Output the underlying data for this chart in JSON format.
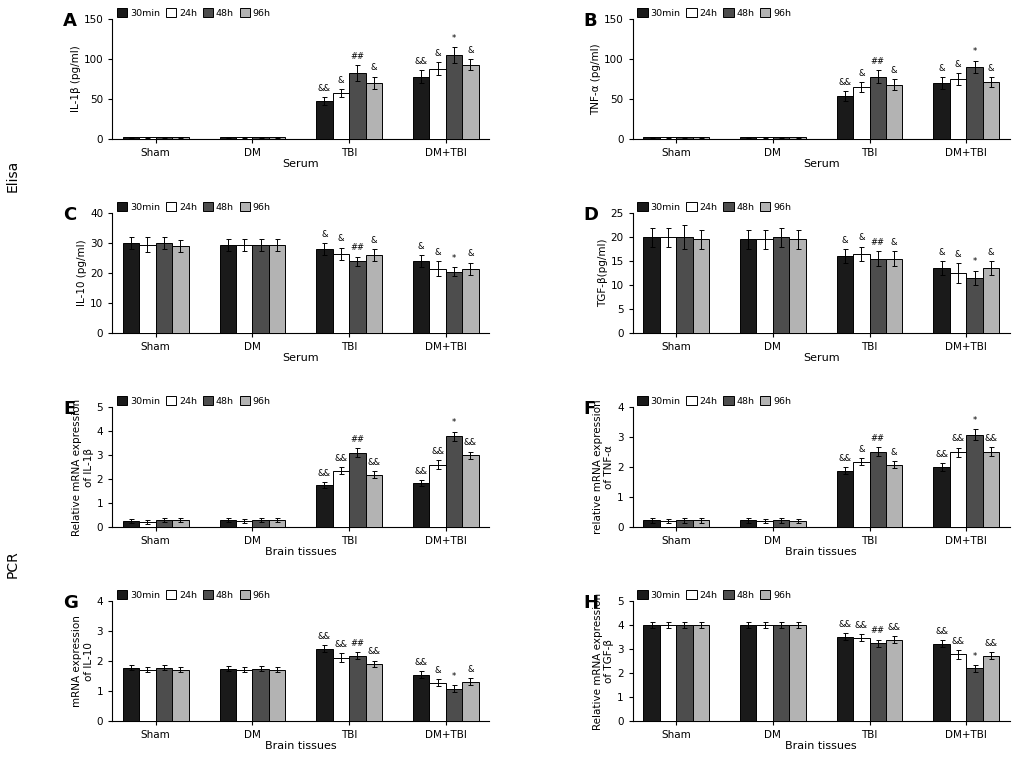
{
  "panels": {
    "A": {
      "title": "A",
      "ylabel": "IL-1β (pg/ml)",
      "xlabel": "Serum",
      "ylim": [
        0,
        150
      ],
      "yticks": [
        0,
        50,
        100,
        150
      ],
      "values": {
        "30min": [
          2,
          2,
          47,
          78
        ],
        "24h": [
          2,
          2,
          57,
          88
        ],
        "48h": [
          2,
          2,
          82,
          105
        ],
        "96h": [
          2,
          2,
          70,
          93
        ]
      },
      "errors": {
        "30min": [
          0.5,
          0.5,
          5,
          8
        ],
        "24h": [
          0.5,
          0.5,
          5,
          8
        ],
        "48h": [
          0.5,
          0.5,
          10,
          10
        ],
        "96h": [
          0.5,
          0.5,
          8,
          7
        ]
      },
      "ann_TBI": [
        "&&",
        "&",
        "##",
        "&"
      ],
      "ann_DMTBI": [
        "&&",
        "&",
        "*",
        "&"
      ]
    },
    "B": {
      "title": "B",
      "ylabel": "TNF-α (pg/ml)",
      "xlabel": "Serum",
      "ylim": [
        0,
        150
      ],
      "yticks": [
        0,
        50,
        100,
        150
      ],
      "values": {
        "30min": [
          2,
          2,
          54,
          70
        ],
        "24h": [
          2,
          2,
          65,
          75
        ],
        "48h": [
          2,
          2,
          78,
          90
        ],
        "96h": [
          2,
          2,
          68,
          71
        ]
      },
      "errors": {
        "30min": [
          0.5,
          0.5,
          6,
          7
        ],
        "24h": [
          0.5,
          0.5,
          6,
          7
        ],
        "48h": [
          0.5,
          0.5,
          8,
          8
        ],
        "96h": [
          0.5,
          0.5,
          7,
          6
        ]
      },
      "ann_TBI": [
        "&&",
        "&",
        "##",
        "&"
      ],
      "ann_DMTBI": [
        "&",
        "&",
        "*",
        "&"
      ]
    },
    "C": {
      "title": "C",
      "ylabel": "IL-10 (pg/ml)",
      "xlabel": "Serum",
      "ylim": [
        0,
        40
      ],
      "yticks": [
        0,
        10,
        20,
        30,
        40
      ],
      "values": {
        "30min": [
          30.0,
          29.5,
          28.0,
          24.0
        ],
        "24h": [
          29.5,
          29.5,
          26.5,
          21.5
        ],
        "48h": [
          30.0,
          29.5,
          24.0,
          20.5
        ],
        "96h": [
          29.0,
          29.5,
          26.0,
          21.5
        ]
      },
      "errors": {
        "30min": [
          2.0,
          2.0,
          2.0,
          2.0
        ],
        "24h": [
          2.5,
          2.0,
          2.0,
          2.5
        ],
        "48h": [
          2.0,
          2.0,
          1.5,
          1.5
        ],
        "96h": [
          2.0,
          2.0,
          2.0,
          2.0
        ]
      },
      "ann_TBI": [
        "&",
        "&",
        "##",
        "&"
      ],
      "ann_DMTBI": [
        "&",
        "&",
        "*",
        "&"
      ]
    },
    "D": {
      "title": "D",
      "ylabel": "TGF-β(pg/ml)",
      "xlabel": "Serum",
      "ylim": [
        0,
        25
      ],
      "yticks": [
        0,
        5,
        10,
        15,
        20,
        25
      ],
      "values": {
        "30min": [
          20.0,
          19.5,
          16.0,
          13.5
        ],
        "24h": [
          20.0,
          19.5,
          16.5,
          12.5
        ],
        "48h": [
          20.0,
          20.0,
          15.5,
          11.5
        ],
        "96h": [
          19.5,
          19.5,
          15.5,
          13.5
        ]
      },
      "errors": {
        "30min": [
          2.0,
          2.0,
          1.5,
          1.5
        ],
        "24h": [
          2.0,
          2.0,
          1.5,
          2.0
        ],
        "48h": [
          2.5,
          2.0,
          1.5,
          1.5
        ],
        "96h": [
          2.0,
          2.0,
          1.5,
          1.5
        ]
      },
      "ann_TBI": [
        "&",
        "&",
        "##",
        "&"
      ],
      "ann_DMTBI": [
        "&",
        "&",
        "*",
        "&"
      ]
    },
    "E": {
      "title": "E",
      "ylabel": "Relative mRNA expression\nof IL-1β",
      "xlabel": "Brain tissues",
      "ylim": [
        0,
        5
      ],
      "yticks": [
        0,
        1,
        2,
        3,
        4,
        5
      ],
      "values": {
        "30min": [
          0.25,
          0.28,
          1.75,
          1.85
        ],
        "24h": [
          0.22,
          0.25,
          2.35,
          2.6
        ],
        "48h": [
          0.28,
          0.28,
          3.1,
          3.78
        ],
        "96h": [
          0.28,
          0.28,
          2.18,
          3.0
        ]
      },
      "errors": {
        "30min": [
          0.08,
          0.08,
          0.12,
          0.12
        ],
        "24h": [
          0.08,
          0.08,
          0.15,
          0.18
        ],
        "48h": [
          0.08,
          0.08,
          0.18,
          0.2
        ],
        "96h": [
          0.08,
          0.08,
          0.15,
          0.15
        ]
      },
      "ann_TBI": [
        "&&",
        "&&",
        "##",
        "&&"
      ],
      "ann_DMTBI": [
        "&&",
        "&&",
        "*",
        "&&"
      ]
    },
    "F": {
      "title": "F",
      "ylabel": "relative mRNA expression\nof TNF-α",
      "xlabel": "Brain tissues",
      "ylim": [
        0,
        4
      ],
      "yticks": [
        0,
        1,
        2,
        3,
        4
      ],
      "values": {
        "30min": [
          0.22,
          0.22,
          1.88,
          2.0
        ],
        "24h": [
          0.2,
          0.2,
          2.18,
          2.5
        ],
        "48h": [
          0.22,
          0.22,
          2.52,
          3.08
        ],
        "96h": [
          0.22,
          0.2,
          2.08,
          2.52
        ]
      },
      "errors": {
        "30min": [
          0.08,
          0.08,
          0.12,
          0.12
        ],
        "24h": [
          0.08,
          0.08,
          0.12,
          0.15
        ],
        "48h": [
          0.08,
          0.08,
          0.15,
          0.18
        ],
        "96h": [
          0.08,
          0.08,
          0.12,
          0.15
        ]
      },
      "ann_TBI": [
        "&&",
        "&",
        "##",
        "&"
      ],
      "ann_DMTBI": [
        "&&",
        "&&",
        "*",
        "&&"
      ]
    },
    "G": {
      "title": "G",
      "ylabel": "mRNA expression\nof IL-10",
      "xlabel": "Brain tissues",
      "ylim": [
        0,
        4
      ],
      "yticks": [
        0,
        1,
        2,
        3,
        4
      ],
      "values": {
        "30min": [
          1.78,
          1.75,
          2.42,
          1.55
        ],
        "24h": [
          1.72,
          1.72,
          2.12,
          1.28
        ],
        "48h": [
          1.78,
          1.75,
          2.18,
          1.08
        ],
        "96h": [
          1.72,
          1.72,
          1.92,
          1.32
        ]
      },
      "errors": {
        "30min": [
          0.08,
          0.08,
          0.12,
          0.12
        ],
        "24h": [
          0.08,
          0.08,
          0.15,
          0.12
        ],
        "48h": [
          0.08,
          0.08,
          0.12,
          0.12
        ],
        "96h": [
          0.08,
          0.08,
          0.1,
          0.12
        ]
      },
      "ann_TBI": [
        "&&",
        "&&",
        "##",
        "&&"
      ],
      "ann_DMTBI": [
        "&&",
        "&",
        "*",
        "&"
      ]
    },
    "H": {
      "title": "H",
      "ylabel": "Relative mRNA expression\nof TGF-β",
      "xlabel": "Brain tissues",
      "ylim": [
        0,
        5
      ],
      "yticks": [
        0,
        1,
        2,
        3,
        4,
        5
      ],
      "values": {
        "30min": [
          4.02,
          4.02,
          3.52,
          3.22
        ],
        "24h": [
          4.0,
          4.0,
          3.48,
          2.78
        ],
        "48h": [
          4.02,
          4.02,
          3.25,
          2.2
        ],
        "96h": [
          4.0,
          4.0,
          3.4,
          2.72
        ]
      },
      "errors": {
        "30min": [
          0.12,
          0.12,
          0.15,
          0.15
        ],
        "24h": [
          0.12,
          0.12,
          0.15,
          0.18
        ],
        "48h": [
          0.12,
          0.12,
          0.15,
          0.15
        ],
        "96h": [
          0.12,
          0.12,
          0.15,
          0.15
        ]
      },
      "ann_TBI": [
        "&&",
        "&&",
        "##",
        "&&"
      ],
      "ann_DMTBI": [
        "&&",
        "&&",
        "*",
        "&&"
      ]
    }
  },
  "bar_colors": {
    "30min": "#1a1a1a",
    "24h": "#ffffff",
    "48h": "#4d4d4d",
    "96h": "#b3b3b3"
  },
  "bar_edgecolor": "#000000",
  "time_points": [
    "30min",
    "24h",
    "48h",
    "96h"
  ],
  "groups": [
    "Sham",
    "DM",
    "TBI",
    "DM+TBI"
  ],
  "elisa_label": "Elisa",
  "pcr_label": "PCR"
}
